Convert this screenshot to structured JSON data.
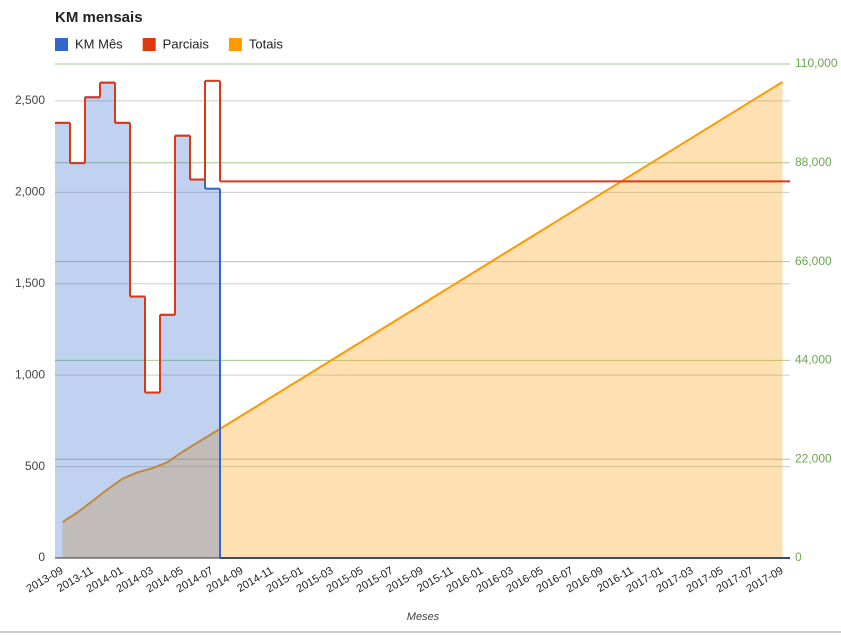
{
  "chart_data": {
    "type": "combo",
    "title": "KM mensais",
    "x_label": "Meses",
    "categories": [
      "2013-09",
      null,
      "2013-11",
      null,
      "2014-01",
      null,
      "2014-03",
      null,
      "2014-05",
      null,
      "2014-07",
      null,
      "2014-09",
      null,
      "2014-11",
      null,
      "2015-01",
      null,
      "2015-03",
      null,
      "2015-05",
      null,
      "2015-07",
      null,
      "2015-09",
      null,
      "2015-11",
      null,
      "2016-01",
      null,
      "2016-03",
      null,
      "2016-05",
      null,
      "2016-07",
      null,
      "2016-09",
      null,
      "2016-11",
      null,
      "2017-01",
      null,
      "2017-03",
      null,
      "2017-05",
      null,
      "2017-07",
      null,
      "2017-09"
    ],
    "series": [
      {
        "name": "KM Mês",
        "color": "#3366cc",
        "type": "steppedArea",
        "values": [
          2380,
          2160,
          2520,
          2600,
          2380,
          1430,
          905,
          1330,
          2310,
          2070,
          2020,
          0,
          0,
          0,
          0,
          0,
          0,
          0,
          0,
          0,
          0,
          0,
          0,
          0,
          0,
          0,
          0,
          0,
          0,
          0,
          0,
          0,
          0,
          0,
          0,
          0,
          0,
          0,
          0,
          0,
          0,
          0,
          0,
          0,
          0,
          0,
          0,
          0,
          0
        ]
      },
      {
        "name": "Parciais",
        "color": "#dc3912",
        "type": "steppedLine",
        "values": [
          2380,
          2160,
          2520,
          2600,
          2380,
          1430,
          905,
          1330,
          2310,
          2070,
          2610,
          2060,
          2060,
          2060,
          2060,
          2060,
          2060,
          2060,
          2060,
          2060,
          2060,
          2060,
          2060,
          2060,
          2060,
          2060,
          2060,
          2060,
          2060,
          2060,
          2060,
          2060,
          2060,
          2060,
          2060,
          2060,
          2060,
          2060,
          2060,
          2060,
          2060,
          2060,
          2060,
          2060,
          2060,
          2060,
          2060,
          2060,
          2060
        ]
      },
      {
        "name": "Totais",
        "color": "#ff9900",
        "type": "area",
        "axis": "y2",
        "values": [
          8000,
          10160,
          12680,
          15280,
          17660,
          19090,
          19995,
          21325,
          23635,
          25705,
          27725,
          29785,
          31845,
          33905,
          35965,
          38025,
          40085,
          42145,
          44205,
          46265,
          48325,
          50385,
          52445,
          54505,
          56565,
          58625,
          60685,
          62745,
          64805,
          66865,
          68925,
          70985,
          73045,
          75105,
          77165,
          79225,
          81285,
          83345,
          85405,
          87465,
          89525,
          91585,
          93645,
          95705,
          97765,
          99825,
          101885,
          103945,
          106005
        ]
      }
    ],
    "ylim": [
      0,
      2702
    ],
    "yticks": [
      0,
      500,
      {
        "value": 1000,
        "label": "1,000"
      },
      {
        "value": 1500,
        "label": "1,500"
      },
      {
        "value": 2000,
        "label": "2,000"
      },
      {
        "value": 2500,
        "label": "2,500"
      }
    ],
    "y2lim": [
      0,
      110000
    ],
    "y2ticks": [
      0,
      {
        "value": 22000,
        "label": "22,000"
      },
      {
        "value": 44000,
        "label": "44,000"
      },
      {
        "value": 66000,
        "label": "66,000"
      },
      {
        "value": 88000,
        "label": "88,000"
      },
      {
        "value": 110000,
        "label": "110,000"
      }
    ],
    "y2_color": "#6aa84f",
    "grid": true,
    "legend": "top-left"
  }
}
